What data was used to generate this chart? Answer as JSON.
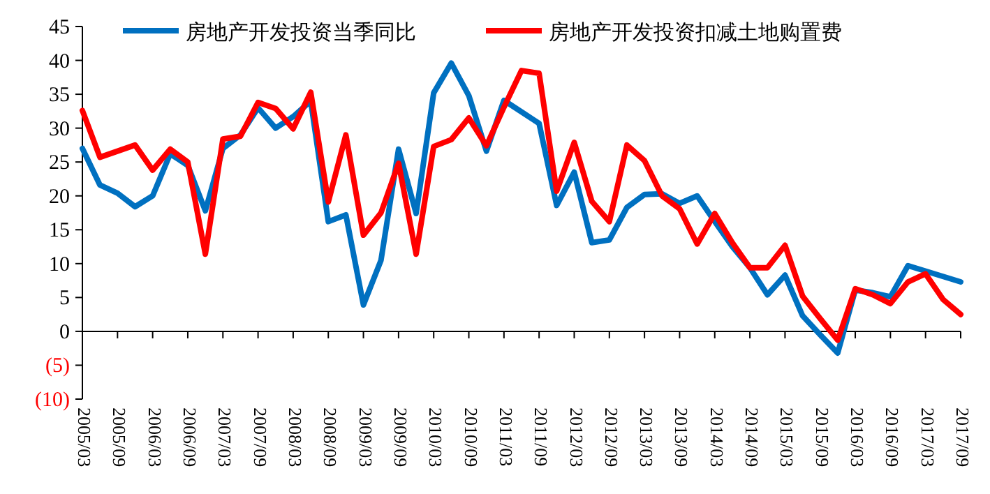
{
  "chart_data": {
    "type": "line",
    "categories": [
      "2005/03",
      null,
      "2005/09",
      null,
      "2006/03",
      null,
      "2006/09",
      null,
      "2007/03",
      null,
      "2007/09",
      null,
      "2008/03",
      null,
      "2008/09",
      null,
      "2009/03",
      null,
      "2009/09",
      null,
      "2010/03",
      null,
      "2010/09",
      null,
      "2011/03",
      null,
      "2011/09",
      null,
      "2012/03",
      null,
      "2012/09",
      null,
      "2013/03",
      null,
      "2013/09",
      null,
      "2014/03",
      null,
      "2014/09",
      null,
      "2015/03",
      null,
      "2015/09",
      null,
      "2016/03",
      null,
      "2016/09",
      null,
      "2017/03",
      null,
      "2017/09"
    ],
    "series": [
      {
        "name": "房地产开发投资当季同比",
        "color": "#0070c0",
        "values": [
          27,
          21.6,
          20.4,
          18.4,
          20,
          26.2,
          24.5,
          17.8,
          27,
          29,
          33,
          30,
          31.7,
          34,
          16.2,
          17.2,
          3.9,
          10.5,
          26.9,
          17.4,
          35.2,
          39.6,
          34.8,
          26.6,
          34.1,
          32.4,
          30.7,
          18.6,
          23.5,
          13.1,
          13.5,
          18.3,
          20.2,
          20.3,
          18.9,
          20,
          16.2,
          12.5,
          9.4,
          5.4,
          8.3,
          2.3,
          -0.5,
          -3.2,
          6.1,
          5.7,
          5.1,
          9.7,
          8.9,
          8.1,
          7.3
        ]
      },
      {
        "name": "房地产开发投资扣减土地购置费",
        "color": "#ff0000",
        "values": [
          32.6,
          25.7,
          26.6,
          27.5,
          23.8,
          26.9,
          25,
          11.4,
          28.4,
          28.8,
          33.8,
          32.9,
          29.9,
          35.3,
          19.1,
          29,
          14.2,
          17.5,
          24.8,
          11.4,
          27.3,
          28.3,
          31.5,
          27.4,
          33.1,
          38.5,
          38.1,
          20.7,
          27.9,
          19.2,
          16.2,
          27.5,
          25.2,
          20,
          18.1,
          12.9,
          17.4,
          13.1,
          9.4,
          9.4,
          12.7,
          5.2,
          1.9,
          -1.3,
          6.3,
          5.4,
          4.1,
          7.3,
          8.5,
          4.7,
          2.5
        ]
      }
    ],
    "ylim": [
      -10,
      45
    ],
    "yticks": [
      {
        "value": -10,
        "label": "(10)"
      },
      {
        "value": -5,
        "label": "(5)"
      },
      0,
      5,
      10,
      15,
      20,
      25,
      30,
      35,
      40,
      45
    ],
    "legend": "top",
    "marker": "none",
    "line_style": "solid"
  }
}
